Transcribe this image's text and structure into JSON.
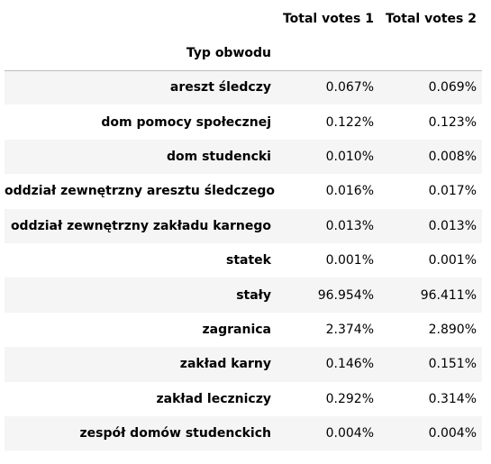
{
  "table": {
    "columns": [
      "Total votes 1",
      "Total votes 2"
    ],
    "index_name": "Typ obwodu",
    "rows": [
      {
        "label": "areszt śledczy",
        "v1": "0.067%",
        "v2": "0.069%"
      },
      {
        "label": "dom pomocy społecznej",
        "v1": "0.122%",
        "v2": "0.123%"
      },
      {
        "label": "dom studencki",
        "v1": "0.010%",
        "v2": "0.008%"
      },
      {
        "label": "oddział zewnętrzny aresztu śledczego",
        "v1": "0.016%",
        "v2": "0.017%"
      },
      {
        "label": "oddział zewnętrzny zakładu karnego",
        "v1": "0.013%",
        "v2": "0.013%"
      },
      {
        "label": "statek",
        "v1": "0.001%",
        "v2": "0.001%"
      },
      {
        "label": "stały",
        "v1": "96.954%",
        "v2": "96.411%"
      },
      {
        "label": "zagranica",
        "v1": "2.374%",
        "v2": "2.890%"
      },
      {
        "label": "zakład karny",
        "v1": "0.146%",
        "v2": "0.151%"
      },
      {
        "label": "zakład leczniczy",
        "v1": "0.292%",
        "v2": "0.314%"
      },
      {
        "label": "zespół domów studenckich",
        "v1": "0.004%",
        "v2": "0.004%"
      }
    ]
  }
}
